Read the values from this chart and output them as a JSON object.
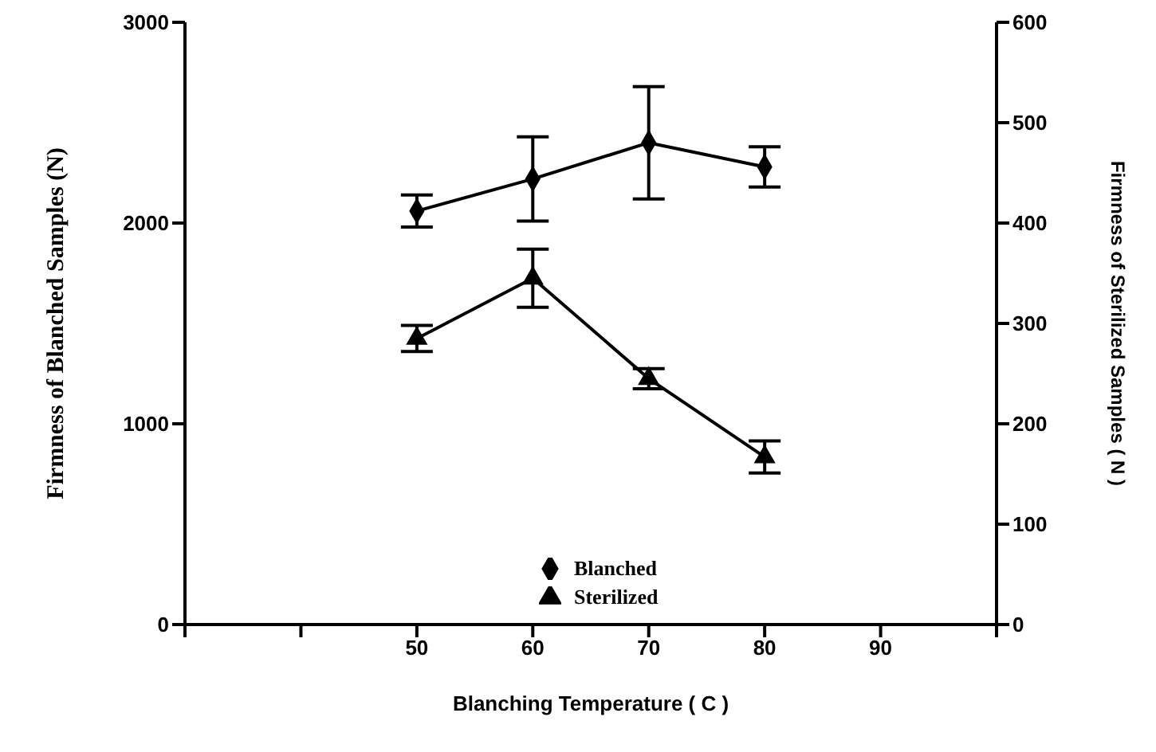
{
  "chart_data": {
    "type": "line",
    "xlabel": "Blanching Temperature (  C )",
    "ylabel": "Firmness of Blanched Samples (N)",
    "y2label": "Firmness of Sterilized Samples ( N )",
    "x": [
      50,
      60,
      70,
      80
    ],
    "series": [
      {
        "name": "Blanched",
        "color": "#000000",
        "marker": "diamond",
        "values": [
          2060,
          2220,
          2400,
          2280
        ],
        "errors": [
          80,
          210,
          280,
          100
        ]
      },
      {
        "name": "Sterilized",
        "color": "#000000",
        "marker": "triangle",
        "axis": "y2",
        "values": [
          285,
          345,
          245,
          167
        ],
        "errors": [
          13,
          29,
          10,
          16
        ]
      }
    ],
    "xlim": [
      30,
      100
    ],
    "xticks": [
      {
        "value": 30,
        "label": null
      },
      {
        "value": 40,
        "label": null
      },
      50,
      60,
      70,
      80,
      90,
      {
        "value": 100,
        "label": null
      }
    ],
    "ylim": [
      0,
      3000
    ],
    "yticks": [
      0,
      1000,
      2000,
      3000
    ],
    "y2lim": [
      0,
      600
    ],
    "y2ticks": [
      0,
      100,
      200,
      300,
      400,
      500,
      600
    ],
    "grid": false,
    "legend": "bottom",
    "line_style": "solid"
  }
}
